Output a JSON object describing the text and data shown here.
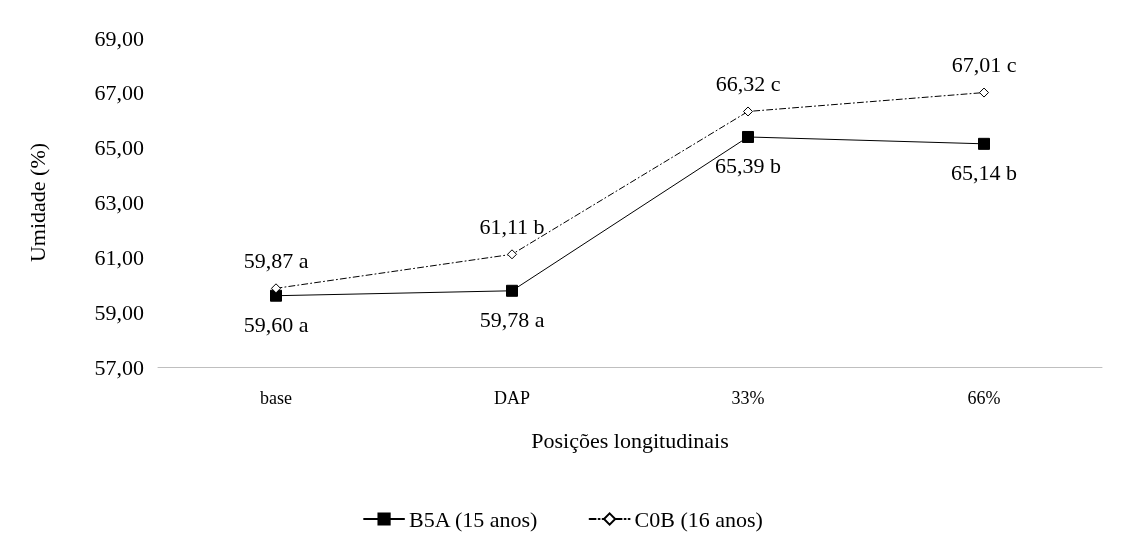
{
  "chart_data": {
    "type": "line",
    "xlabel": "Posições longitudinais",
    "ylabel": "Umidade (%)",
    "categories": [
      "base",
      "DAP",
      "33%",
      "66%"
    ],
    "series": [
      {
        "name": "B5A (15 anos)",
        "color": "#000000",
        "marker": "square",
        "line_style": "solid",
        "values": [
          59.6,
          59.78,
          65.39,
          65.14
        ],
        "value_labels": [
          "59,60 a",
          "59,78 a",
          "65,39 b",
          "65,14 b"
        ]
      },
      {
        "name": "C0B (16 anos)",
        "color": "#000000",
        "marker": "diamond",
        "line_style": "dashed",
        "values": [
          59.87,
          61.11,
          66.32,
          67.01
        ],
        "value_labels": [
          "59,87 a",
          "61,11 b",
          "66,32 c",
          "67,01 c"
        ]
      }
    ],
    "ylim": [
      57,
      69
    ],
    "yticks": [
      {
        "value": 57,
        "label": "57,00"
      },
      {
        "value": 59,
        "label": "59,00"
      },
      {
        "value": 61,
        "label": "61,00"
      },
      {
        "value": 63,
        "label": "63,00"
      },
      {
        "value": 65,
        "label": "65,00"
      },
      {
        "value": 67,
        "label": "67,00"
      },
      {
        "value": 69,
        "label": "69,00"
      }
    ],
    "grid": false,
    "legend": "bottom"
  }
}
